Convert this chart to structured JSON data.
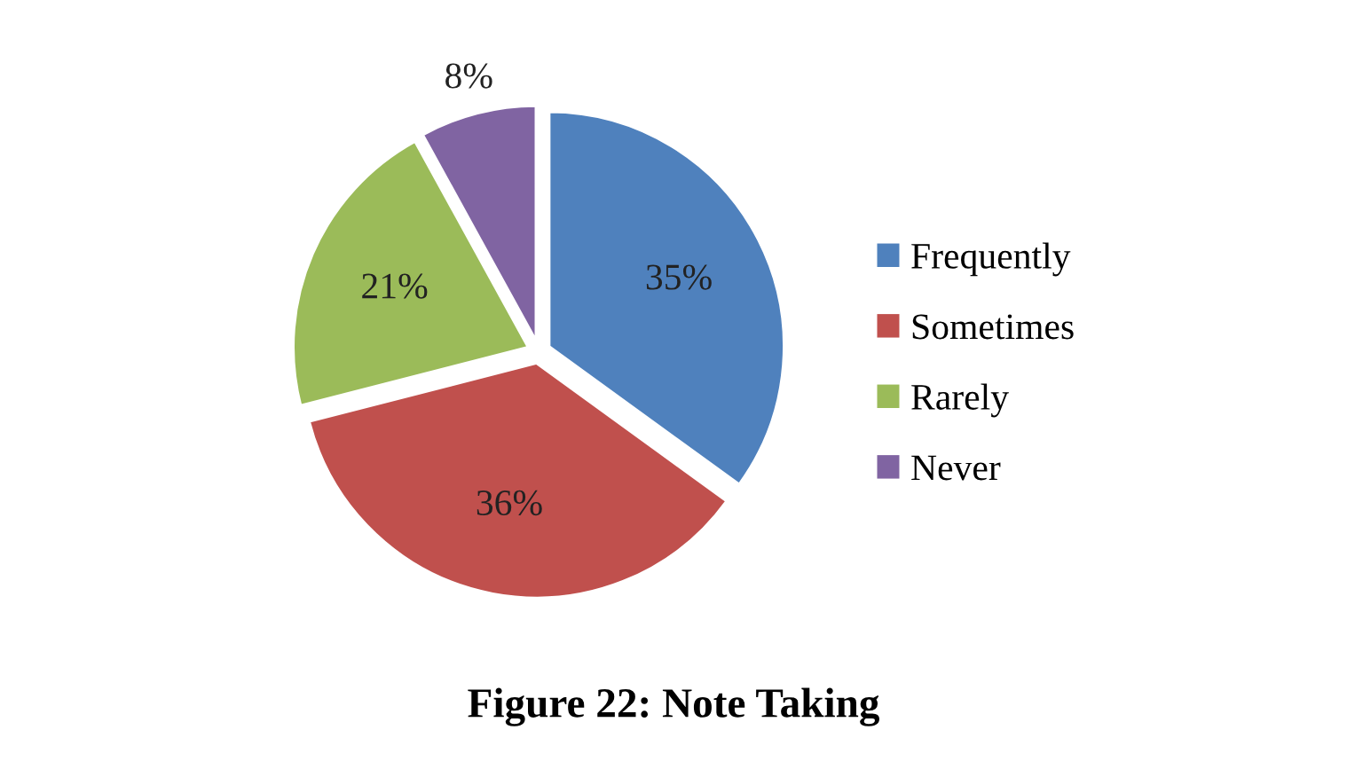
{
  "chart_data": {
    "type": "pie",
    "title": "Figure 22: Note Taking",
    "categories": [
      "Frequently",
      "Sometimes",
      "Rarely",
      "Never"
    ],
    "values": [
      35,
      36,
      21,
      8
    ],
    "colors": [
      "#4f81bd",
      "#c0504d",
      "#9bbb59",
      "#8064a2"
    ],
    "value_labels": [
      "35%",
      "36%",
      "21%",
      "8%"
    ],
    "legend": "right"
  }
}
